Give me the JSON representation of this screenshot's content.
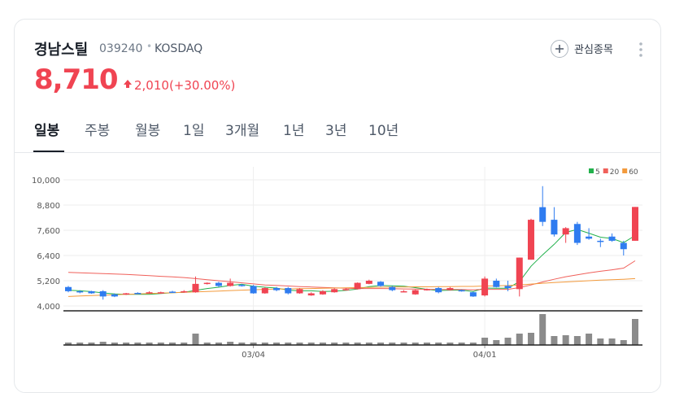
{
  "header": {
    "name": "경남스틸",
    "code": "039240",
    "market": "KOSDAQ",
    "price": "8,710",
    "change": "2,010(+30.00%)",
    "watch_button": "관심종목"
  },
  "tabs": [
    "일봉",
    "주봉",
    "월봉",
    "1일",
    "3개월",
    "1년",
    "3년",
    "10년"
  ],
  "active_tab": 0,
  "chart_data": {
    "type": "candlestick",
    "categories": [
      null,
      null,
      null,
      null,
      null,
      null,
      null,
      null,
      null,
      null,
      null,
      null,
      null,
      null,
      null,
      null,
      "03/04",
      null,
      null,
      null,
      null,
      null,
      null,
      null,
      null,
      null,
      null,
      null,
      null,
      null,
      null,
      null,
      null,
      null,
      null,
      null,
      "04/01",
      null,
      null,
      null,
      null,
      null,
      null,
      null,
      null,
      null,
      null,
      null,
      null,
      null
    ],
    "candles": [
      {
        "open": 4900,
        "high": 4950,
        "low": 4650,
        "close": 4700
      },
      {
        "open": 4700,
        "high": 4750,
        "low": 4600,
        "close": 4650
      },
      {
        "open": 4700,
        "high": 4720,
        "low": 4580,
        "close": 4600
      },
      {
        "open": 4700,
        "high": 4750,
        "low": 4300,
        "close": 4450
      },
      {
        "open": 4550,
        "high": 4600,
        "low": 4420,
        "close": 4450
      },
      {
        "open": 4550,
        "high": 4620,
        "low": 4520,
        "close": 4600
      },
      {
        "open": 4620,
        "high": 4650,
        "low": 4580,
        "close": 4600
      },
      {
        "open": 4600,
        "high": 4700,
        "low": 4580,
        "close": 4650
      },
      {
        "open": 4600,
        "high": 4680,
        "low": 4580,
        "close": 4650
      },
      {
        "open": 4680,
        "high": 4720,
        "low": 4620,
        "close": 4650
      },
      {
        "open": 4650,
        "high": 4750,
        "low": 4630,
        "close": 4700
      },
      {
        "open": 4650,
        "high": 5400,
        "low": 4630,
        "close": 5050
      },
      {
        "open": 5050,
        "high": 5120,
        "low": 5020,
        "close": 5100
      },
      {
        "open": 5100,
        "high": 5150,
        "low": 4900,
        "close": 4950
      },
      {
        "open": 4950,
        "high": 5300,
        "low": 4920,
        "close": 5100
      },
      {
        "open": 5000,
        "high": 5050,
        "low": 4920,
        "close": 4950
      },
      {
        "open": 4950,
        "high": 5000,
        "low": 4580,
        "close": 4600
      },
      {
        "open": 4600,
        "high": 4900,
        "low": 4580,
        "close": 4850
      },
      {
        "open": 4850,
        "high": 4900,
        "low": 4700,
        "close": 4750
      },
      {
        "open": 4850,
        "high": 4900,
        "low": 4550,
        "close": 4600
      },
      {
        "open": 4600,
        "high": 4850,
        "low": 4580,
        "close": 4800
      },
      {
        "open": 4500,
        "high": 4650,
        "low": 4480,
        "close": 4600
      },
      {
        "open": 4550,
        "high": 4750,
        "low": 4530,
        "close": 4700
      },
      {
        "open": 4650,
        "high": 4850,
        "low": 4630,
        "close": 4800
      },
      {
        "open": 4750,
        "high": 4850,
        "low": 4730,
        "close": 4800
      },
      {
        "open": 4800,
        "high": 5120,
        "low": 4780,
        "close": 5100
      },
      {
        "open": 5050,
        "high": 5250,
        "low": 5030,
        "close": 5200
      },
      {
        "open": 5150,
        "high": 5180,
        "low": 4920,
        "close": 4950
      },
      {
        "open": 4900,
        "high": 4950,
        "low": 4700,
        "close": 4750
      },
      {
        "open": 4700,
        "high": 4750,
        "low": 4650,
        "close": 4700
      },
      {
        "open": 4550,
        "high": 4780,
        "low": 4530,
        "close": 4750
      },
      {
        "open": 4750,
        "high": 4830,
        "low": 4730,
        "close": 4800
      },
      {
        "open": 4850,
        "high": 4900,
        "low": 4600,
        "close": 4650
      },
      {
        "open": 4750,
        "high": 4900,
        "low": 4730,
        "close": 4850
      },
      {
        "open": 4750,
        "high": 4780,
        "low": 4680,
        "close": 4700
      },
      {
        "open": 4650,
        "high": 4680,
        "low": 4430,
        "close": 4450
      },
      {
        "open": 4500,
        "high": 5400,
        "low": 4450,
        "close": 5300
      },
      {
        "open": 5200,
        "high": 5300,
        "low": 4880,
        "close": 4900
      },
      {
        "open": 4950,
        "high": 5200,
        "low": 4700,
        "close": 4850
      },
      {
        "open": 4800,
        "high": 6300,
        "low": 4450,
        "close": 6300
      },
      {
        "open": 6200,
        "high": 8150,
        "low": 6200,
        "close": 8100
      },
      {
        "open": 8700,
        "high": 9700,
        "low": 7800,
        "close": 8000
      },
      {
        "open": 8100,
        "high": 8700,
        "low": 7300,
        "close": 7400
      },
      {
        "open": 7400,
        "high": 7750,
        "low": 7000,
        "close": 7700
      },
      {
        "open": 7900,
        "high": 8000,
        "low": 6900,
        "close": 7000
      },
      {
        "open": 7300,
        "high": 7700,
        "low": 7150,
        "close": 7200
      },
      {
        "open": 7100,
        "high": 7200,
        "low": 6800,
        "close": 7050
      },
      {
        "open": 7300,
        "high": 7450,
        "low": 7050,
        "close": 7100
      },
      {
        "open": 7000,
        "high": 7100,
        "low": 6400,
        "close": 6700
      },
      {
        "open": 7100,
        "high": 8710,
        "low": 7100,
        "close": 8710
      }
    ],
    "up_color": "#f04452",
    "down_color": "#2f7cf0",
    "series": [
      {
        "name": "5",
        "color": "#22b14c",
        "values": [
          4750,
          4720,
          4680,
          4620,
          4570,
          4550,
          4550,
          4550,
          4590,
          4630,
          4650,
          4740,
          4830,
          4890,
          4980,
          5030,
          4940,
          4890,
          4850,
          4750,
          4720,
          4720,
          4690,
          4700,
          4740,
          4800,
          4920,
          4970,
          4960,
          4940,
          4870,
          4790,
          4730,
          4750,
          4750,
          4690,
          4850,
          4840,
          4840,
          5160,
          5890,
          6430,
          6930,
          7500,
          7640,
          7460,
          7270,
          7210,
          7010,
          7350
        ]
      },
      {
        "name": "20",
        "color": "#f0605a",
        "values": [
          5600,
          5580,
          5560,
          5540,
          5520,
          5500,
          5470,
          5440,
          5410,
          5380,
          5350,
          5300,
          5250,
          5200,
          5150,
          5100,
          5050,
          5000,
          4980,
          4950,
          4920,
          4900,
          4880,
          4860,
          4840,
          4830,
          4830,
          4830,
          4820,
          4810,
          4800,
          4790,
          4780,
          4780,
          4780,
          4770,
          4790,
          4790,
          4790,
          4870,
          5000,
          5140,
          5270,
          5390,
          5480,
          5570,
          5650,
          5720,
          5800,
          6150
        ]
      },
      {
        "name": "60",
        "color": "#f39a3c",
        "values": [
          4450,
          4470,
          4490,
          4510,
          4530,
          4550,
          4570,
          4590,
          4610,
          4630,
          4650,
          4670,
          4690,
          4710,
          4730,
          4750,
          4770,
          4790,
          4800,
          4810,
          4820,
          4830,
          4840,
          4850,
          4860,
          4870,
          4880,
          4890,
          4900,
          4900,
          4910,
          4910,
          4920,
          4920,
          4930,
          4930,
          4950,
          4960,
          4970,
          5000,
          5040,
          5080,
          5110,
          5140,
          5170,
          5200,
          5230,
          5250,
          5270,
          5300
        ]
      }
    ],
    "volumes": [
      3,
      3,
      3,
      4,
      3,
      3,
      3,
      3,
      3,
      3,
      3,
      14,
      3,
      3,
      4,
      3,
      3,
      3,
      3,
      3,
      3,
      3,
      3,
      3,
      3,
      3,
      3,
      3,
      3,
      3,
      3,
      3,
      3,
      3,
      3,
      3,
      9,
      6,
      9,
      14,
      15,
      38,
      11,
      12,
      11,
      14,
      8,
      8,
      6,
      32
    ],
    "volume_color": "#8b8b8b",
    "volume_ylim": [
      0,
      40
    ],
    "ylim": [
      3806,
      10620
    ],
    "yticks": [
      {
        "value": 4000,
        "label": "4,000"
      },
      {
        "value": 5200,
        "label": "5,200"
      },
      {
        "value": 6400,
        "label": "6,400"
      },
      {
        "value": 7600,
        "label": "7,600"
      },
      {
        "value": 8800,
        "label": "8,800"
      },
      {
        "value": 10000,
        "label": "10,000"
      }
    ],
    "grid": true,
    "legend": "top-right"
  }
}
